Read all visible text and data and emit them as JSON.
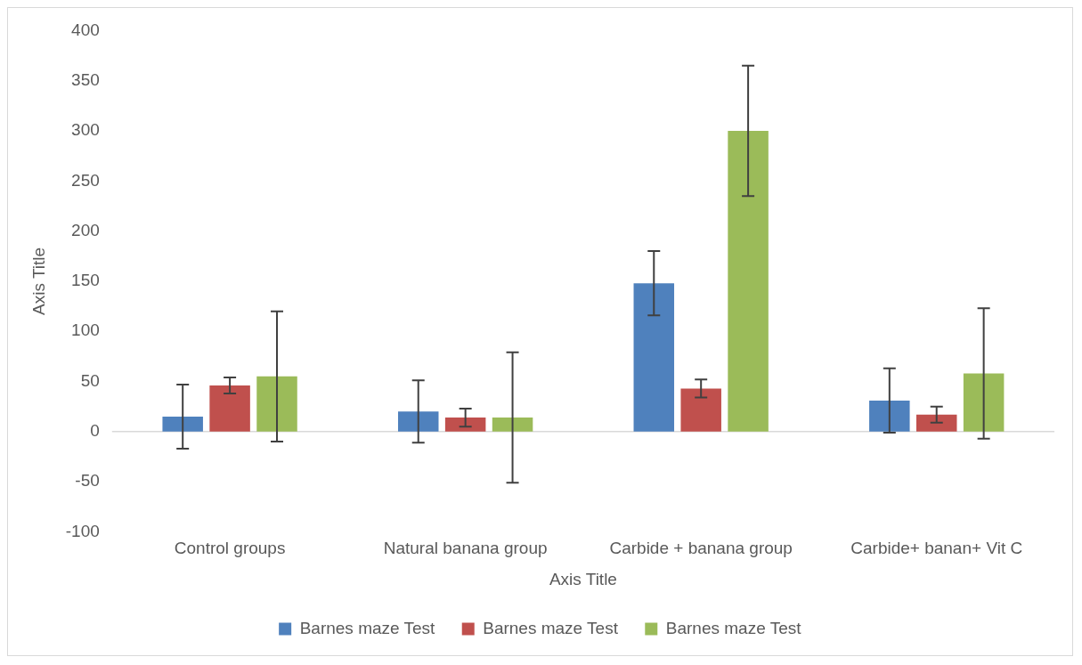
{
  "chart_data": {
    "type": "bar",
    "xlabel": "Axis Title",
    "ylabel": "Axis Title",
    "categories": [
      "Control groups",
      "Natural banana group",
      "Carbide + banana group",
      "Carbide+ banan+ Vit C"
    ],
    "series": [
      {
        "name": "Barnes maze Test",
        "color": "#4f81bd",
        "values": [
          15,
          20,
          148,
          31
        ],
        "errors": [
          32,
          31,
          32,
          32
        ]
      },
      {
        "name": "Barnes maze Test",
        "color": "#c0504d",
        "values": [
          46,
          14,
          43,
          17
        ],
        "errors": [
          8,
          9,
          9,
          8
        ]
      },
      {
        "name": "Barnes maze Test",
        "color": "#9bbb59",
        "values": [
          55,
          14,
          300,
          58
        ],
        "errors": [
          65,
          65,
          65,
          65
        ]
      }
    ],
    "ylim": [
      -100,
      400
    ],
    "yticks": [
      -100,
      -50,
      0,
      50,
      100,
      150,
      200,
      250,
      300,
      350,
      400
    ],
    "legend": "bottom"
  }
}
